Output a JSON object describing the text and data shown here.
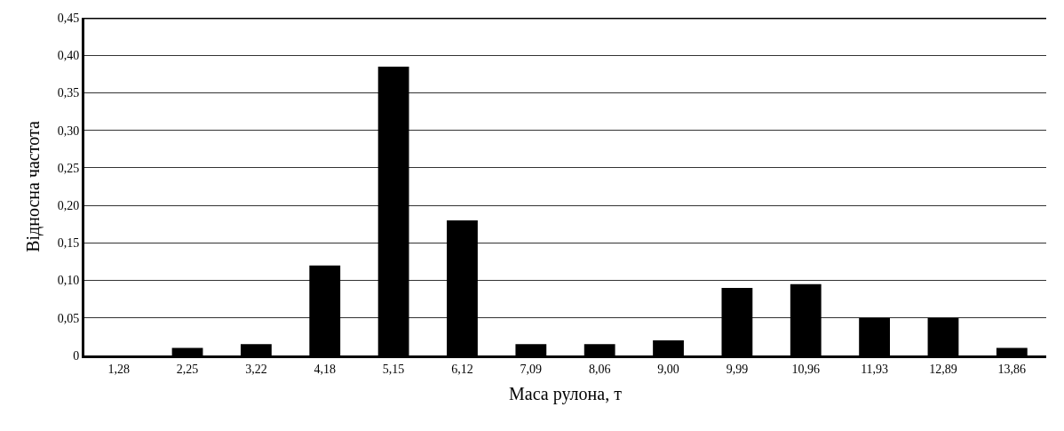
{
  "chart_data": {
    "type": "bar",
    "xlabel": "Маса рулона, т",
    "ylabel": "Відносна частота",
    "categories": [
      "1,28",
      "2,25",
      "3,22",
      "4,18",
      "5,15",
      "6,12",
      "7,09",
      "8,06",
      "9,00",
      "9,99",
      "10,96",
      "11,93",
      "12,89",
      "13,86"
    ],
    "values": [
      0,
      0.01,
      0.015,
      0.12,
      0.385,
      0.18,
      0.015,
      0.015,
      0.02,
      0.09,
      0.095,
      0.05,
      0.05,
      0.01
    ],
    "color": "#000000",
    "ylim": [
      0,
      0.45
    ],
    "yticks": [
      0,
      {
        "value": 0.05,
        "label": "0,05"
      },
      {
        "value": 0.1,
        "label": "0,10"
      },
      {
        "value": 0.15,
        "label": "0,15"
      },
      {
        "value": 0.2,
        "label": "0,20"
      },
      {
        "value": 0.25,
        "label": "0,25"
      },
      {
        "value": 0.3,
        "label": "0,30"
      },
      {
        "value": 0.35,
        "label": "0,35"
      },
      {
        "value": 0.4,
        "label": "0,40"
      },
      {
        "value": 0.45,
        "label": "0,45"
      }
    ],
    "grid": "y"
  }
}
